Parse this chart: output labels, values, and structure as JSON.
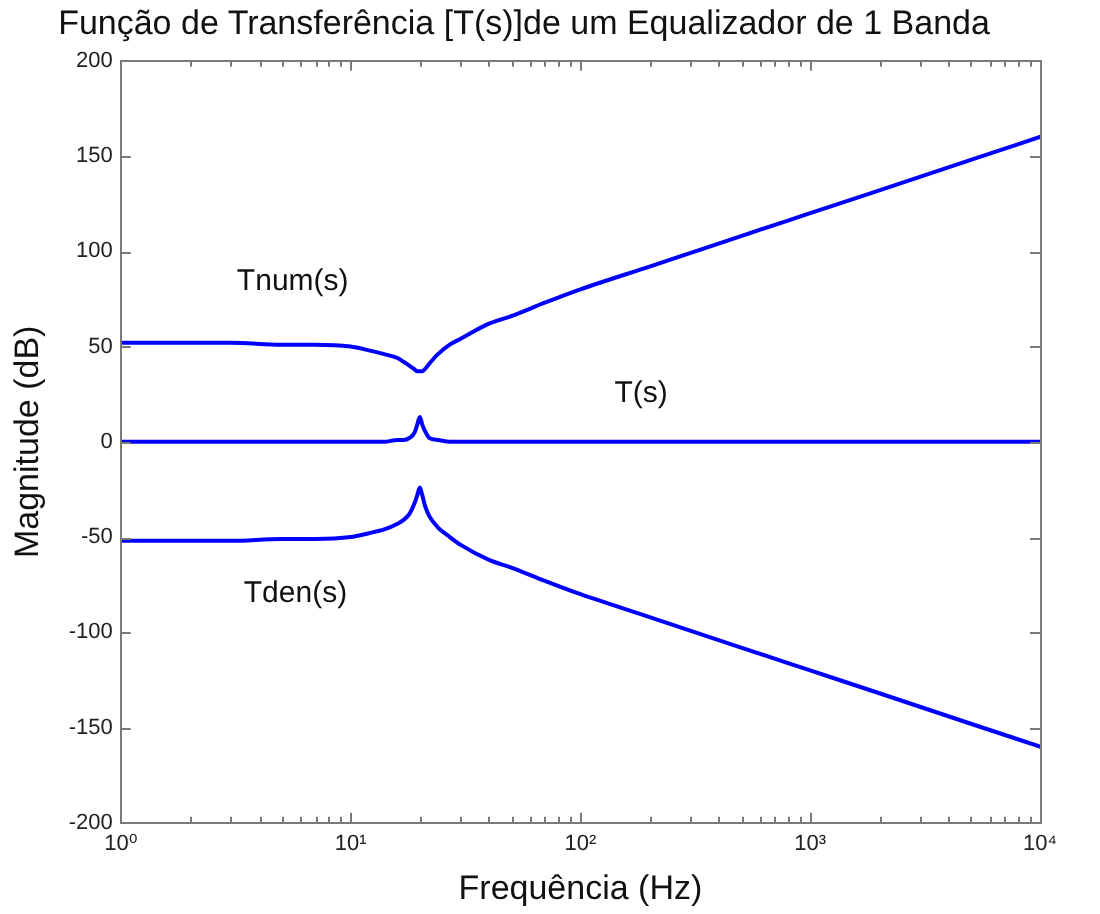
{
  "chart_data": {
    "type": "line",
    "title": "Função de Transferência [T(s)]de um Equalizador de 1 Banda",
    "xlabel": "Frequência (Hz)",
    "ylabel": "Magnitude (dB)",
    "x": [
      1,
      2,
      3,
      5,
      7,
      10,
      12,
      14,
      16,
      17,
      18,
      19,
      19.5,
      20,
      20.5,
      21,
      22,
      24,
      27,
      30,
      40,
      50,
      70,
      100,
      200,
      500,
      1000,
      2000,
      5000,
      10000
    ],
    "series": [
      {
        "name": "Tnum(s)",
        "color": "#0000ff",
        "values": [
          52,
          52,
          52,
          51,
          51,
          50,
          48,
          46,
          44,
          42,
          40,
          38,
          37,
          37,
          37,
          38,
          41,
          46,
          51,
          54,
          62,
          66,
          73,
          80,
          92,
          108,
          120,
          132,
          148,
          160
        ]
      },
      {
        "name": "T(s)",
        "color": "#0000ff",
        "values": [
          0,
          0,
          0,
          0,
          0,
          0,
          0,
          0,
          1,
          1,
          2,
          5,
          9,
          13,
          9,
          6,
          2,
          1,
          0,
          0,
          0,
          0,
          0,
          0,
          0,
          0,
          0,
          0,
          0,
          0
        ]
      },
      {
        "name": "Tden(s)",
        "color": "#0000ff",
        "values": [
          -52,
          -52,
          -52,
          -51,
          -51,
          -50,
          -48,
          -46,
          -43,
          -41,
          -38,
          -32,
          -28,
          -24,
          -28,
          -33,
          -39,
          -45,
          -50,
          -54,
          -62,
          -66,
          -73,
          -80,
          -92,
          -108,
          -120,
          -132,
          -148,
          -160
        ]
      }
    ],
    "xlim": [
      1,
      10000
    ],
    "ylim": [
      -200,
      200
    ],
    "xticks": [
      {
        "value": 1,
        "label": "10⁰"
      },
      {
        "value": 2,
        "label": null
      },
      {
        "value": 3,
        "label": null
      },
      {
        "value": 4,
        "label": null
      },
      {
        "value": 5,
        "label": null
      },
      {
        "value": 6,
        "label": null
      },
      {
        "value": 7,
        "label": null
      },
      {
        "value": 8,
        "label": null
      },
      {
        "value": 9,
        "label": null
      },
      {
        "value": 10,
        "label": "10¹"
      },
      {
        "value": 20,
        "label": null
      },
      {
        "value": 30,
        "label": null
      },
      {
        "value": 40,
        "label": null
      },
      {
        "value": 50,
        "label": null
      },
      {
        "value": 60,
        "label": null
      },
      {
        "value": 70,
        "label": null
      },
      {
        "value": 80,
        "label": null
      },
      {
        "value": 90,
        "label": null
      },
      {
        "value": 100,
        "label": "10²"
      },
      {
        "value": 200,
        "label": null
      },
      {
        "value": 300,
        "label": null
      },
      {
        "value": 400,
        "label": null
      },
      {
        "value": 500,
        "label": null
      },
      {
        "value": 600,
        "label": null
      },
      {
        "value": 700,
        "label": null
      },
      {
        "value": 800,
        "label": null
      },
      {
        "value": 900,
        "label": null
      },
      {
        "value": 1000,
        "label": "10³"
      },
      {
        "value": 2000,
        "label": null
      },
      {
        "value": 3000,
        "label": null
      },
      {
        "value": 4000,
        "label": null
      },
      {
        "value": 5000,
        "label": null
      },
      {
        "value": 6000,
        "label": null
      },
      {
        "value": 7000,
        "label": null
      },
      {
        "value": 8000,
        "label": null
      },
      {
        "value": 9000,
        "label": null
      },
      {
        "value": 10000,
        "label": "10⁴"
      }
    ],
    "yticks": [
      -200,
      -150,
      -100,
      -50,
      0,
      50,
      100,
      150,
      200
    ],
    "log": "x",
    "grid": false,
    "legend": false
  }
}
